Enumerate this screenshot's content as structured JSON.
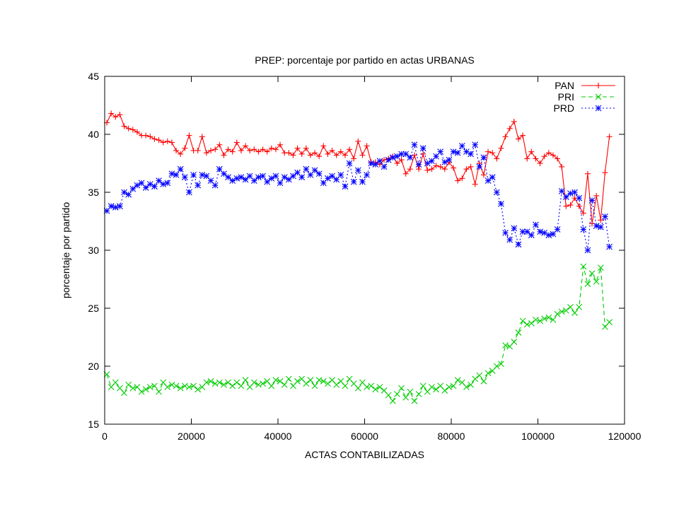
{
  "chart_data": {
    "type": "line",
    "title": "PREP: porcentaje por partido en actas URBANAS",
    "xlabel": "ACTAS CONTABILIZADAS",
    "ylabel": "porcentaje por partido",
    "xlim": [
      0,
      120000
    ],
    "ylim": [
      15,
      45
    ],
    "xticks": [
      0,
      20000,
      40000,
      60000,
      80000,
      100000,
      120000
    ],
    "yticks": [
      15,
      20,
      25,
      30,
      35,
      40,
      45
    ],
    "xtick_labels": [
      "0",
      "20000",
      "40000",
      "60000",
      "80000",
      "100000",
      "120000"
    ],
    "ytick_labels": [
      "15",
      "20",
      "25",
      "30",
      "35",
      "40",
      "45"
    ],
    "grid": false,
    "legend_position": "top-right",
    "series": [
      {
        "name": "PAN",
        "color": "#ff0000",
        "dash": "solid",
        "marker": "plus",
        "x": [
          500,
          1500,
          2500,
          3500,
          4500,
          5500,
          6500,
          7500,
          8500,
          9500,
          10500,
          11500,
          12500,
          13500,
          14500,
          15500,
          16500,
          17500,
          18500,
          19500,
          20500,
          21500,
          22500,
          23500,
          24500,
          25500,
          26500,
          27500,
          28500,
          29500,
          30500,
          31500,
          32500,
          33500,
          34500,
          35500,
          36500,
          37500,
          38500,
          39500,
          40500,
          41500,
          42500,
          43500,
          44500,
          45500,
          46500,
          47500,
          48500,
          49500,
          50500,
          51500,
          52500,
          53500,
          54500,
          55500,
          56500,
          57500,
          58500,
          59500,
          60500,
          61500,
          62500,
          63500,
          64500,
          65500,
          66500,
          67500,
          68500,
          69500,
          70500,
          71500,
          72500,
          73500,
          74500,
          75500,
          76500,
          77500,
          78500,
          79500,
          80500,
          81500,
          82500,
          83500,
          84500,
          85500,
          86500,
          87500,
          88500,
          89500,
          90500,
          91500,
          92500,
          93500,
          94500,
          95500,
          96500,
          97500,
          98500,
          99500,
          100500,
          101500,
          102500,
          103500,
          104500,
          105500,
          106500,
          107500,
          108500,
          109500,
          110500,
          111500,
          112500,
          113500,
          114500,
          115500,
          116500
        ],
        "values": [
          41.0,
          41.8,
          41.5,
          41.7,
          40.7,
          40.5,
          40.4,
          40.2,
          39.9,
          39.9,
          39.8,
          39.6,
          39.5,
          39.3,
          39.4,
          39.3,
          38.6,
          38.3,
          38.8,
          39.9,
          38.6,
          38.6,
          39.8,
          38.4,
          38.6,
          38.7,
          39.1,
          38.2,
          38.7,
          38.5,
          39.3,
          38.6,
          39.0,
          38.6,
          38.7,
          38.5,
          38.7,
          38.5,
          38.8,
          38.7,
          39.1,
          38.4,
          38.4,
          38.2,
          38.8,
          38.3,
          38.8,
          38.2,
          38.4,
          38.1,
          39.0,
          38.3,
          38.6,
          38.2,
          38.5,
          38.2,
          38.7,
          37.9,
          39.4,
          38.2,
          39.0,
          37.6,
          37.6,
          37.4,
          37.8,
          37.9,
          38.1,
          37.5,
          37.8,
          36.6,
          37.0,
          38.2,
          37.0,
          38.3,
          36.9,
          37.0,
          37.3,
          37.2,
          37.0,
          37.6,
          37.1,
          36.0,
          36.2,
          37.0,
          37.2,
          35.7,
          37.5,
          36.5,
          38.5,
          38.4,
          37.9,
          38.8,
          39.8,
          40.5,
          41.1,
          39.6,
          39.9,
          37.9,
          38.5,
          37.9,
          37.5,
          38.1,
          38.4,
          38.2,
          37.9,
          37.2,
          33.8,
          33.9,
          34.5,
          33.8,
          33.2,
          36.6,
          32.3,
          34.7,
          32.6,
          36.7,
          39.8
        ]
      },
      {
        "name": "PRI",
        "color": "#00cc00",
        "dash": "dashed",
        "marker": "cross",
        "x": [
          500,
          1500,
          2500,
          3500,
          4500,
          5500,
          6500,
          7500,
          8500,
          9500,
          10500,
          11500,
          12500,
          13500,
          14500,
          15500,
          16500,
          17500,
          18500,
          19500,
          20500,
          21500,
          22500,
          23500,
          24500,
          25500,
          26500,
          27500,
          28500,
          29500,
          30500,
          31500,
          32500,
          33500,
          34500,
          35500,
          36500,
          37500,
          38500,
          39500,
          40500,
          41500,
          42500,
          43500,
          44500,
          45500,
          46500,
          47500,
          48500,
          49500,
          50500,
          51500,
          52500,
          53500,
          54500,
          55500,
          56500,
          57500,
          58500,
          59500,
          60500,
          61500,
          62500,
          63500,
          64500,
          65500,
          66500,
          67500,
          68500,
          69500,
          70500,
          71500,
          72500,
          73500,
          74500,
          75500,
          76500,
          77500,
          78500,
          79500,
          80500,
          81500,
          82500,
          83500,
          84500,
          85500,
          86500,
          87500,
          88500,
          89500,
          90500,
          91500,
          92500,
          93500,
          94500,
          95500,
          96500,
          97500,
          98500,
          99500,
          100500,
          101500,
          102500,
          103500,
          104500,
          105500,
          106500,
          107500,
          108500,
          109500,
          110500,
          111500,
          112500,
          113500,
          114500,
          115500,
          116500
        ],
        "values": [
          19.3,
          18.2,
          18.6,
          18.1,
          17.7,
          18.4,
          18.1,
          18.2,
          17.8,
          18.0,
          18.2,
          18.3,
          17.8,
          18.6,
          18.2,
          18.4,
          18.3,
          18.1,
          18.3,
          18.2,
          18.3,
          18.0,
          18.2,
          18.6,
          18.7,
          18.5,
          18.6,
          18.4,
          18.6,
          18.3,
          18.6,
          18.3,
          18.8,
          18.2,
          18.6,
          18.4,
          18.5,
          18.7,
          18.3,
          18.8,
          18.7,
          18.4,
          18.9,
          18.3,
          18.7,
          18.9,
          18.5,
          18.8,
          18.3,
          18.8,
          18.7,
          18.5,
          18.8,
          18.4,
          18.7,
          18.3,
          18.9,
          18.5,
          18.1,
          18.6,
          18.2,
          18.3,
          18.0,
          18.2,
          17.9,
          17.5,
          17.0,
          17.6,
          18.1,
          17.3,
          17.8,
          17.0,
          17.6,
          18.3,
          17.8,
          18.2,
          18.0,
          18.3,
          17.9,
          18.2,
          18.3,
          18.8,
          18.6,
          18.2,
          18.4,
          18.9,
          19.2,
          18.7,
          19.4,
          19.6,
          20.0,
          20.2,
          21.8,
          21.7,
          22.1,
          22.9,
          23.9,
          23.6,
          23.7,
          24.0,
          23.9,
          24.1,
          24.2,
          24.0,
          24.5,
          24.7,
          24.8,
          25.1,
          24.6,
          25.1,
          28.6,
          27.1,
          28.0,
          27.3,
          28.5,
          23.4,
          23.8
        ]
      },
      {
        "name": "PRD",
        "color": "#0000ff",
        "dash": "dotted",
        "marker": "star",
        "x": [
          500,
          1500,
          2500,
          3500,
          4500,
          5500,
          6500,
          7500,
          8500,
          9500,
          10500,
          11500,
          12500,
          13500,
          14500,
          15500,
          16500,
          17500,
          18500,
          19500,
          20500,
          21500,
          22500,
          23500,
          24500,
          25500,
          26500,
          27500,
          28500,
          29500,
          30500,
          31500,
          32500,
          33500,
          34500,
          35500,
          36500,
          37500,
          38500,
          39500,
          40500,
          41500,
          42500,
          43500,
          44500,
          45500,
          46500,
          47500,
          48500,
          49500,
          50500,
          51500,
          52500,
          53500,
          54500,
          55500,
          56500,
          57500,
          58500,
          59500,
          60500,
          61500,
          62500,
          63500,
          64500,
          65500,
          66500,
          67500,
          68500,
          69500,
          70500,
          71500,
          72500,
          73500,
          74500,
          75500,
          76500,
          77500,
          78500,
          79500,
          80500,
          81500,
          82500,
          83500,
          84500,
          85500,
          86500,
          87500,
          88500,
          89500,
          90500,
          91500,
          92500,
          93500,
          94500,
          95500,
          96500,
          97500,
          98500,
          99500,
          100500,
          101500,
          102500,
          103500,
          104500,
          105500,
          106500,
          107500,
          108500,
          109500,
          110500,
          111500,
          112500,
          113500,
          114500,
          115500,
          116500
        ],
        "values": [
          33.4,
          33.8,
          33.7,
          33.8,
          35.0,
          34.8,
          35.3,
          35.6,
          35.8,
          35.4,
          35.7,
          35.5,
          36.0,
          35.7,
          35.8,
          36.6,
          36.5,
          37.0,
          36.3,
          35.0,
          36.5,
          35.6,
          36.5,
          36.4,
          36.0,
          35.6,
          37.0,
          36.6,
          36.3,
          36.0,
          36.2,
          36.3,
          36.1,
          36.4,
          36.0,
          36.3,
          36.4,
          35.9,
          36.2,
          36.4,
          35.8,
          36.3,
          36.1,
          36.4,
          36.7,
          36.3,
          37.0,
          36.5,
          36.9,
          36.6,
          35.8,
          36.2,
          36.4,
          36.1,
          36.5,
          35.5,
          37.5,
          35.9,
          36.9,
          35.9,
          36.5,
          37.5,
          37.4,
          37.7,
          37.2,
          37.8,
          38.0,
          38.1,
          38.3,
          38.3,
          38.0,
          39.1,
          37.4,
          38.8,
          37.5,
          37.7,
          38.1,
          38.5,
          37.6,
          37.8,
          38.5,
          38.4,
          39.0,
          38.5,
          38.3,
          39.1,
          37.2,
          38.0,
          36.0,
          36.3,
          35.0,
          34.0,
          31.5,
          30.9,
          31.9,
          30.5,
          31.6,
          31.6,
          31.3,
          32.2,
          31.6,
          31.5,
          31.3,
          31.4,
          31.8,
          35.1,
          34.6,
          34.9,
          35.0,
          34.5,
          31.8,
          30.0,
          34.3,
          32.1,
          32.0,
          32.9,
          30.3
        ]
      }
    ]
  }
}
